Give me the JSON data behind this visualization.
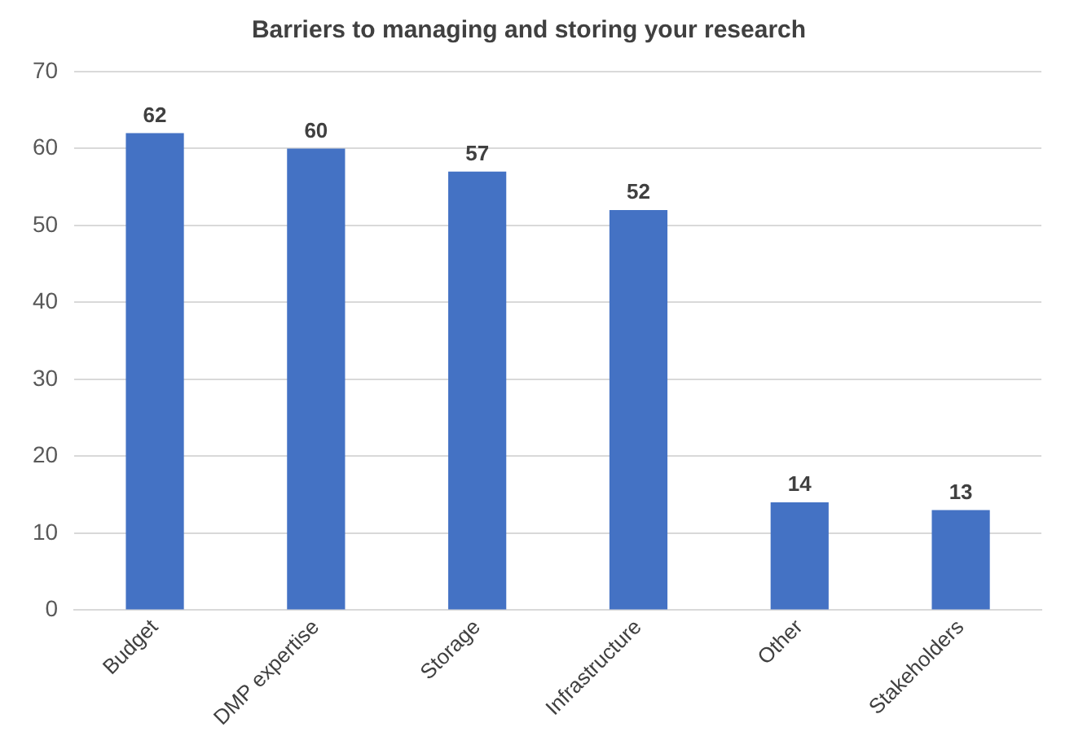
{
  "chart_data": {
    "type": "bar",
    "title": "Barriers to managing and storing your research",
    "categories": [
      "Budget",
      "DMP expertise",
      "Storage",
      "Infrastructure",
      "Other",
      "Stakeholders"
    ],
    "values": [
      62,
      60,
      57,
      52,
      14,
      13
    ],
    "color": "#4472c4",
    "ylim": [
      0,
      70
    ],
    "yticks": [
      0,
      10,
      20,
      30,
      40,
      50,
      60,
      70
    ],
    "grid": "y",
    "data_labels": true
  }
}
